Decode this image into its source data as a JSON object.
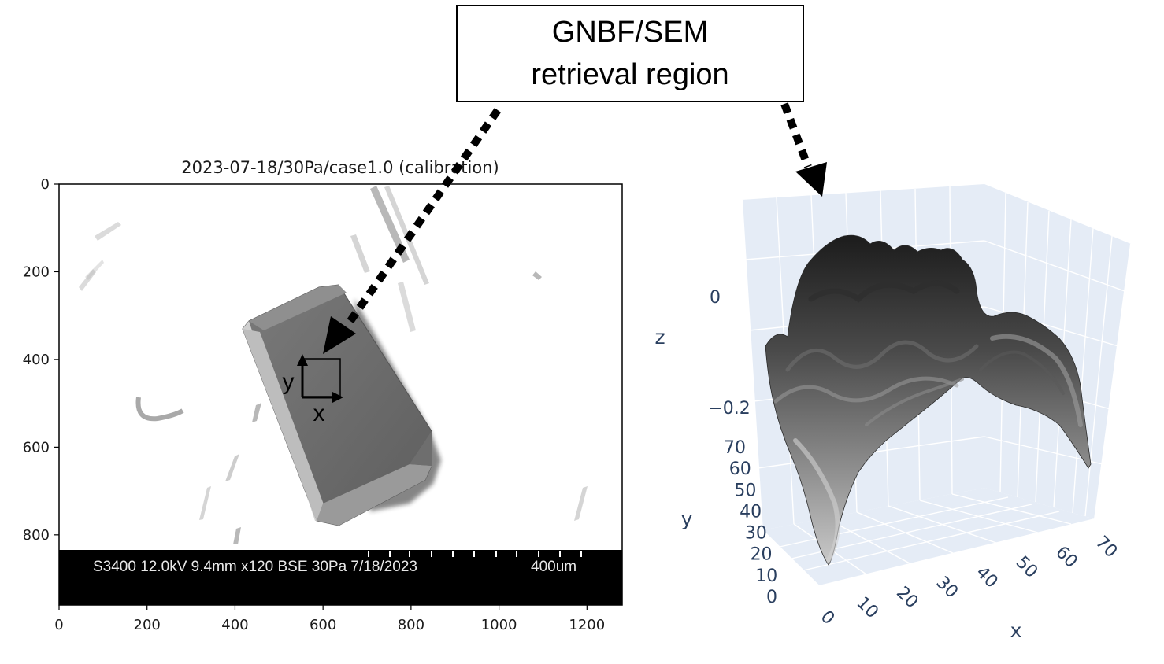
{
  "callout": {
    "line1": "GNBF/SEM",
    "line2": "retrieval region"
  },
  "sem_panel": {
    "title": "2023-07-18/30Pa/case1.0 (calibration)",
    "info_bar": "S3400 12.0kV 9.4mm x120 BSE 30Pa 7/18/2023",
    "scale_label": "400um",
    "x_ticks": [
      "0",
      "200",
      "400",
      "600",
      "800",
      "1000",
      "1200"
    ],
    "y_ticks": [
      "0",
      "200",
      "400",
      "600",
      "800"
    ],
    "x_range": [
      0,
      1280
    ],
    "y_range": [
      0,
      960
    ],
    "roi_axis_labels": {
      "x": "x",
      "y": "y"
    }
  },
  "surface_panel": {
    "axis_titles": {
      "x": "x",
      "y": "y",
      "z": "z"
    },
    "x_ticks": [
      "0",
      "10",
      "20",
      "30",
      "40",
      "50",
      "60",
      "70"
    ],
    "y_ticks": [
      "0",
      "10",
      "20",
      "30",
      "40",
      "50",
      "60",
      "70"
    ],
    "z_ticks": [
      "0",
      "−0.2"
    ],
    "colors": {
      "pane": "#e5ecf6",
      "grid": "#ffffff",
      "axis_text": "#2a3f5f",
      "surface_dark": "#1e1e1e",
      "surface_light": "#c8c8c8"
    }
  }
}
